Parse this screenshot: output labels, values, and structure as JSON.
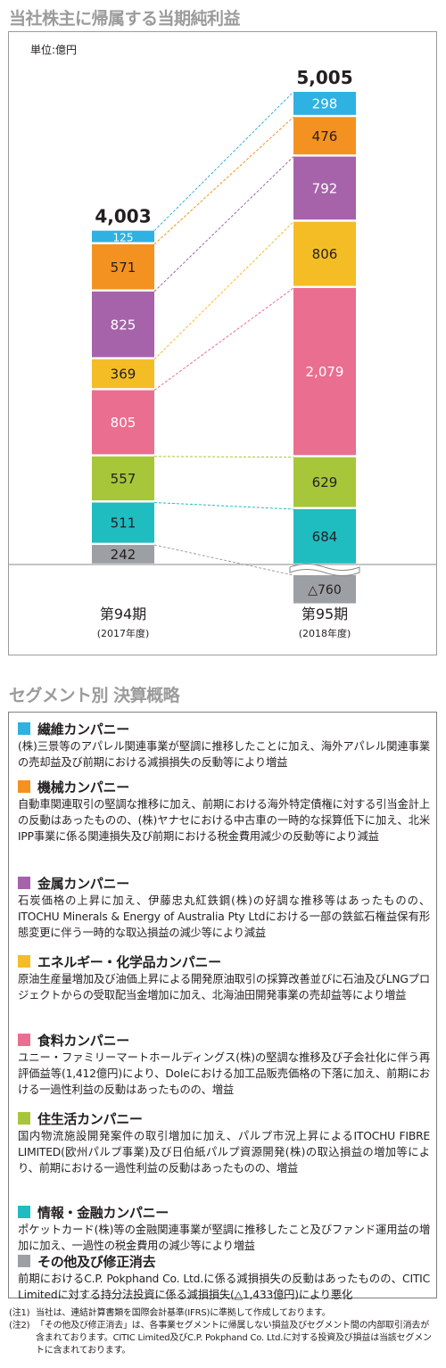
{
  "chart_title": "当社株主に帰属する当期純利益",
  "chart_data": {
    "type": "bar",
    "stacked": true,
    "unit": "単位:億円",
    "categories": [
      {
        "label": "第94期",
        "sublabel": "(2017年度)",
        "total": "4,003"
      },
      {
        "label": "第95期",
        "sublabel": "(2018年度)",
        "total": "5,005"
      }
    ],
    "series": [
      {
        "key": "other",
        "color": "#9c9fa3",
        "values": [
          242,
          -760
        ],
        "labels": [
          "242",
          "△760"
        ]
      },
      {
        "key": "ict",
        "color": "#1fbcc0",
        "values": [
          511,
          684
        ],
        "labels": [
          "511",
          "684"
        ]
      },
      {
        "key": "general",
        "color": "#a7c63a",
        "values": [
          557,
          629
        ],
        "labels": [
          "557",
          "629"
        ]
      },
      {
        "key": "food",
        "color": "#ea6e90",
        "values": [
          805,
          2079
        ],
        "labels": [
          "805",
          "2,079"
        ]
      },
      {
        "key": "energy",
        "color": "#f4bd25",
        "values": [
          369,
          806
        ],
        "labels": [
          "369",
          "806"
        ]
      },
      {
        "key": "metals",
        "color": "#a663aa",
        "values": [
          825,
          792
        ],
        "labels": [
          "825",
          "792"
        ]
      },
      {
        "key": "machinery",
        "color": "#f39221",
        "values": [
          571,
          476
        ],
        "labels": [
          "571",
          "476"
        ]
      },
      {
        "key": "textile",
        "color": "#2fb1e2",
        "values": [
          125,
          298
        ],
        "labels": [
          "125",
          "298"
        ]
      }
    ]
  },
  "segments_title": "セグメント別 決算概略",
  "segments": [
    {
      "name": "繊維カンパニー",
      "color": "#2fb1e2",
      "desc": "(株)三景等のアパレル関連事業が堅調に推移したことに加え、海外アパレル関連事業の売却益及び前期における減損損失の反動等により増益"
    },
    {
      "name": "機械カンパニー",
      "color": "#f39221",
      "desc": "自動車関連取引の堅調な推移に加え、前期における海外特定債権に対する引当金計上の反動はあったものの、(株)ヤナセにおける中古車の一時的な採算低下に加え、北米IPP事業に係る関連損失及び前期における税金費用減少の反動等により減益"
    },
    {
      "name": "金属カンパニー",
      "color": "#a663aa",
      "desc": "石炭価格の上昇に加え、伊藤忠丸紅鉄鋼(株)の好調な推移等はあったものの、ITOCHU Minerals & Energy of Australia Pty Ltdにおける一部の鉄鉱石権益保有形態変更に伴う一時的な取込損益の減少等により減益"
    },
    {
      "name": "エネルギー・化学品カンパニー",
      "color": "#f4bd25",
      "desc": "原油生産量増加及び油価上昇による開発原油取引の採算改善並びに石油及びLNGプロジェクトからの受取配当金増加に加え、北海油田開発事業の売却益等により増益"
    },
    {
      "name": "食料カンパニー",
      "color": "#ea6e90",
      "desc": "ユニー・ファミリーマートホールディングス(株)の堅調な推移及び子会社化に伴う再評価益等(1,412億円)により、Doleにおける加工品販売価格の下落に加え、前期における一過性利益の反動はあったものの、増益"
    },
    {
      "name": "住生活カンパニー",
      "color": "#a7c63a",
      "desc": "国内物流施設開発案件の取引増加に加え、パルプ市況上昇によるITOCHU FIBRE LIMITED(欧州パルプ事業)及び日伯紙パルプ資源開発(株)の取込損益の増加等により、前期における一過性利益の反動はあったものの、増益"
    },
    {
      "name": "情報・金融カンパニー",
      "color": "#1fbcc0",
      "desc": "ポケットカード(株)等の金融関連事業が堅調に推移したこと及びファンド運用益の増加に加え、一過性の税金費用の減少等により増益"
    },
    {
      "name": "その他及び修正消去",
      "color": "#9c9fa3",
      "desc": "前期におけるC.P. Pokphand Co. Ltd.に係る減損損失の反動はあったものの、CITIC Limitedに対する持分法投資に係る減損損失(△1,433億円)により悪化"
    }
  ],
  "notes": [
    {
      "label": "(注1)",
      "text": "当社は、連結計算書類を国際会計基準(IFRS)に準拠して作成しております。"
    },
    {
      "label": "(注2)",
      "text": "「その他及び修正消去」は、各事業セグメントに帰属しない損益及びセグメント間の内部取引消去が含まれております。CITIC Limited及びC.P. Pokphand Co. Ltd.に対する投資及び損益は当該セグメントに含まれております。"
    }
  ]
}
